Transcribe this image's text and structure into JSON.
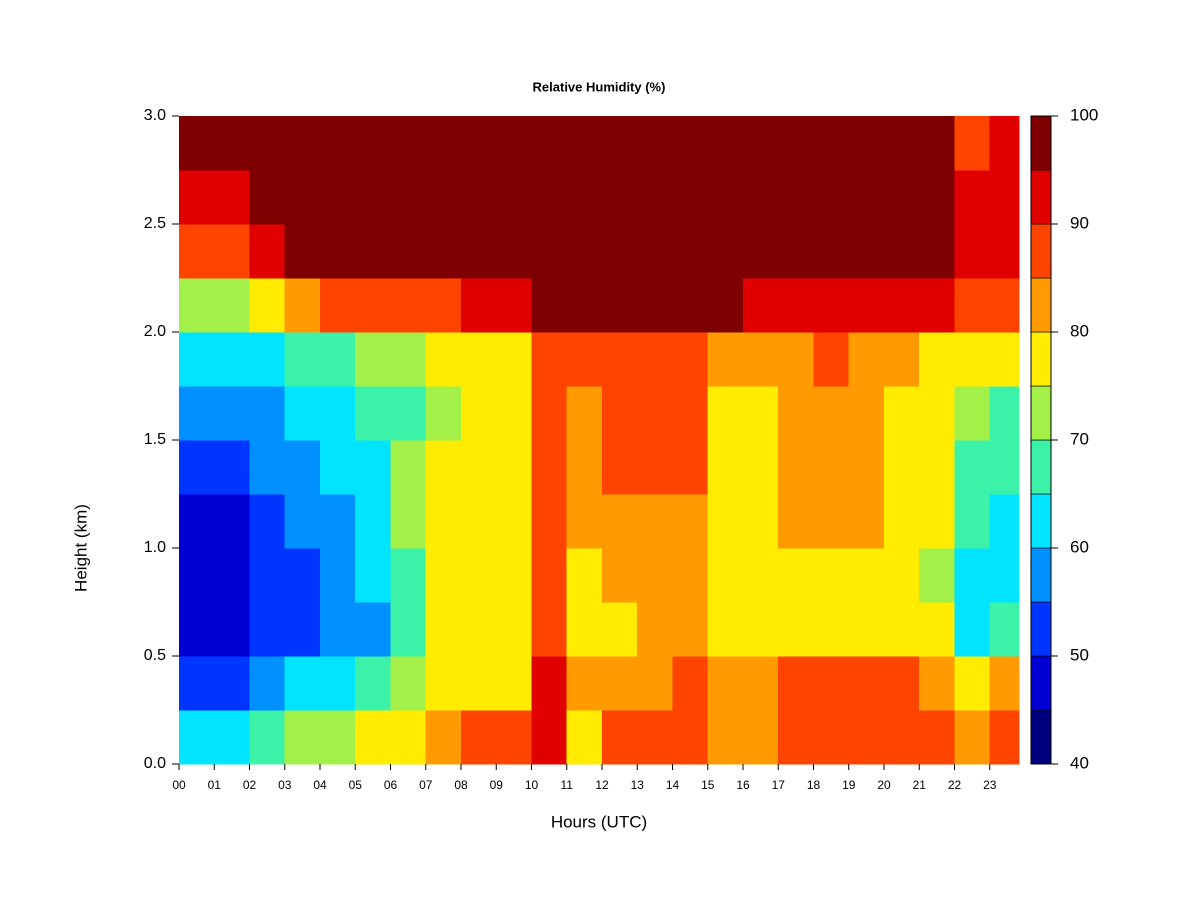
{
  "chart_data": {
    "type": "filled-contour",
    "title": "Relative Humidity (%)",
    "x_label": "Hours (UTC)",
    "y_label": "Height (km)",
    "x_bins": [
      0,
      1,
      2,
      3,
      4,
      5,
      6,
      7,
      8,
      9,
      10,
      11,
      12,
      13,
      14,
      15,
      16,
      17,
      18,
      19,
      20,
      21,
      22,
      23,
      23.83
    ],
    "y_bins": [
      0,
      0.25,
      0.5,
      0.75,
      1,
      1.25,
      1.5,
      1.75,
      2,
      2.25,
      2.5,
      2.75,
      3
    ],
    "z": [
      [
        60,
        62,
        65,
        70,
        72,
        75,
        78,
        82,
        85,
        85,
        90,
        78,
        85,
        85,
        88,
        82,
        82,
        85,
        85,
        85,
        85,
        85,
        82,
        85
      ],
      [
        50,
        50,
        55,
        60,
        62,
        65,
        70,
        75,
        78,
        78,
        92,
        80,
        82,
        82,
        85,
        80,
        82,
        85,
        85,
        85,
        85,
        82,
        75,
        80
      ],
      [
        45,
        45,
        50,
        52,
        55,
        58,
        65,
        75,
        78,
        78,
        88,
        78,
        78,
        80,
        80,
        75,
        75,
        78,
        78,
        78,
        75,
        75,
        62,
        65
      ],
      [
        45,
        45,
        50,
        52,
        55,
        60,
        68,
        75,
        78,
        78,
        85,
        78,
        80,
        80,
        80,
        75,
        75,
        78,
        78,
        78,
        75,
        72,
        62,
        60
      ],
      [
        45,
        45,
        52,
        55,
        58,
        62,
        70,
        75,
        78,
        78,
        87,
        80,
        82,
        82,
        82,
        75,
        75,
        80,
        82,
        80,
        78,
        75,
        65,
        62
      ],
      [
        50,
        50,
        55,
        58,
        60,
        62,
        70,
        75,
        78,
        78,
        88,
        80,
        85,
        85,
        85,
        78,
        78,
        80,
        82,
        80,
        78,
        75,
        68,
        65
      ],
      [
        55,
        55,
        58,
        62,
        62,
        65,
        68,
        72,
        75,
        76,
        88,
        80,
        85,
        85,
        85,
        78,
        78,
        80,
        82,
        80,
        78,
        75,
        70,
        68
      ],
      [
        60,
        62,
        62,
        65,
        68,
        70,
        72,
        75,
        78,
        78,
        88,
        85,
        88,
        88,
        88,
        82,
        82,
        82,
        85,
        82,
        80,
        78,
        75,
        75
      ],
      [
        70,
        72,
        75,
        80,
        85,
        87,
        88,
        88,
        90,
        92,
        95,
        95,
        95,
        95,
        95,
        95,
        93,
        93,
        92,
        92,
        92,
        90,
        85,
        88
      ],
      [
        85,
        88,
        90,
        95,
        98,
        98,
        98,
        98,
        98,
        98,
        98,
        98,
        98,
        98,
        98,
        98,
        98,
        98,
        98,
        98,
        98,
        98,
        92,
        92
      ],
      [
        92,
        93,
        97,
        98,
        98,
        98,
        98,
        98,
        98,
        98,
        98,
        98,
        98,
        98,
        98,
        98,
        98,
        98,
        98,
        98,
        98,
        98,
        90,
        92
      ],
      [
        95,
        96,
        98,
        98,
        98,
        98,
        98,
        98,
        98,
        98,
        98,
        98,
        98,
        98,
        98,
        98,
        98,
        98,
        98,
        95,
        96,
        98,
        85,
        92
      ]
    ],
    "xlim": [
      0,
      23.83
    ],
    "ylim": [
      0,
      3
    ],
    "xticks": [
      {
        "value": 0,
        "label": "00"
      },
      {
        "value": 1,
        "label": "01"
      },
      {
        "value": 2,
        "label": "02"
      },
      {
        "value": 3,
        "label": "03"
      },
      {
        "value": 4,
        "label": "04"
      },
      {
        "value": 5,
        "label": "05"
      },
      {
        "value": 6,
        "label": "06"
      },
      {
        "value": 7,
        "label": "07"
      },
      {
        "value": 8,
        "label": "08"
      },
      {
        "value": 9,
        "label": "09"
      },
      10,
      11,
      12,
      13,
      14,
      15,
      16,
      17,
      18,
      19,
      20,
      21,
      22,
      23
    ],
    "yticks": [
      {
        "value": 0,
        "label": "0.0"
      },
      {
        "value": 0.5,
        "label": "0.5"
      },
      {
        "value": 1,
        "label": "1.0"
      },
      {
        "value": 1.5,
        "label": "1.5"
      },
      {
        "value": 2,
        "label": "2.0"
      },
      {
        "value": 2.5,
        "label": "2.5"
      },
      {
        "value": 3,
        "label": "3.0"
      }
    ],
    "levels": [
      40,
      45,
      50,
      55,
      60,
      65,
      70,
      75,
      80,
      85,
      90,
      95,
      100
    ],
    "colors": [
      "#00007f",
      "#0000d4",
      "#0034ff",
      "#0090ff",
      "#00e4ff",
      "#3cf2a8",
      "#a2f048",
      "#ffec00",
      "#ff9a00",
      "#ff4400",
      "#e00000",
      "#7f0000"
    ],
    "colorbar_ticks": [
      40,
      50,
      60,
      70,
      80,
      90,
      100
    ]
  }
}
